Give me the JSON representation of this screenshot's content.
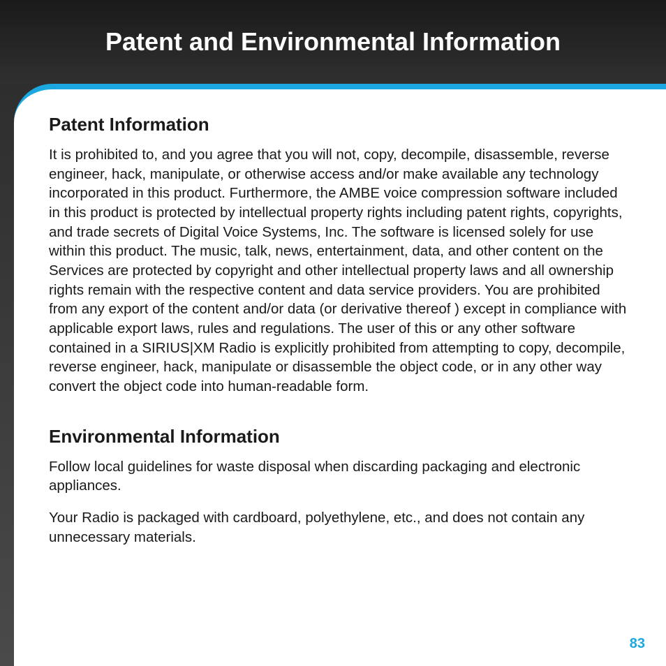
{
  "page": {
    "title": "Patent and Environmental Information",
    "page_number": "83",
    "accent_color": "#1ba8e0",
    "background_gradient": [
      "#1a1a1a",
      "#4a4a4a"
    ],
    "card_background": "#ffffff"
  },
  "sections": {
    "patent": {
      "heading": "Patent Information",
      "body": "It is prohibited to, and you agree that you will not, copy, decompile, disassemble, reverse engineer, hack, manipulate, or otherwise access and/or make available any technology incorporated in this product. Furthermore, the AMBE  voice compression software included in this product is protected by intellectual property rights including patent rights, copyrights, and trade secrets of Digital Voice Systems, Inc. The software is licensed solely for use within this product. The music, talk, news, entertainment, data, and other content on the Services are protected by copyright and other intellectual property laws and all ownership rights remain with the respective content and data service providers. You are prohibited from any export of the content and/or data (or derivative thereof ) except in compliance with applicable export laws, rules and regulations. The user of this or any other software contained in a SIRIUS|XM Radio is explicitly prohibited from attempting to copy, decompile, reverse engineer, hack, manipulate or disassemble the object code, or in any other way convert the object code into human-readable form."
    },
    "environmental": {
      "heading": "Environmental Information",
      "para1": "Follow local guidelines for waste disposal when discarding packaging and electronic appliances.",
      "para2": "Your Radio is packaged with cardboard, polyethylene, etc., and does not contain any unnecessary materials."
    }
  }
}
